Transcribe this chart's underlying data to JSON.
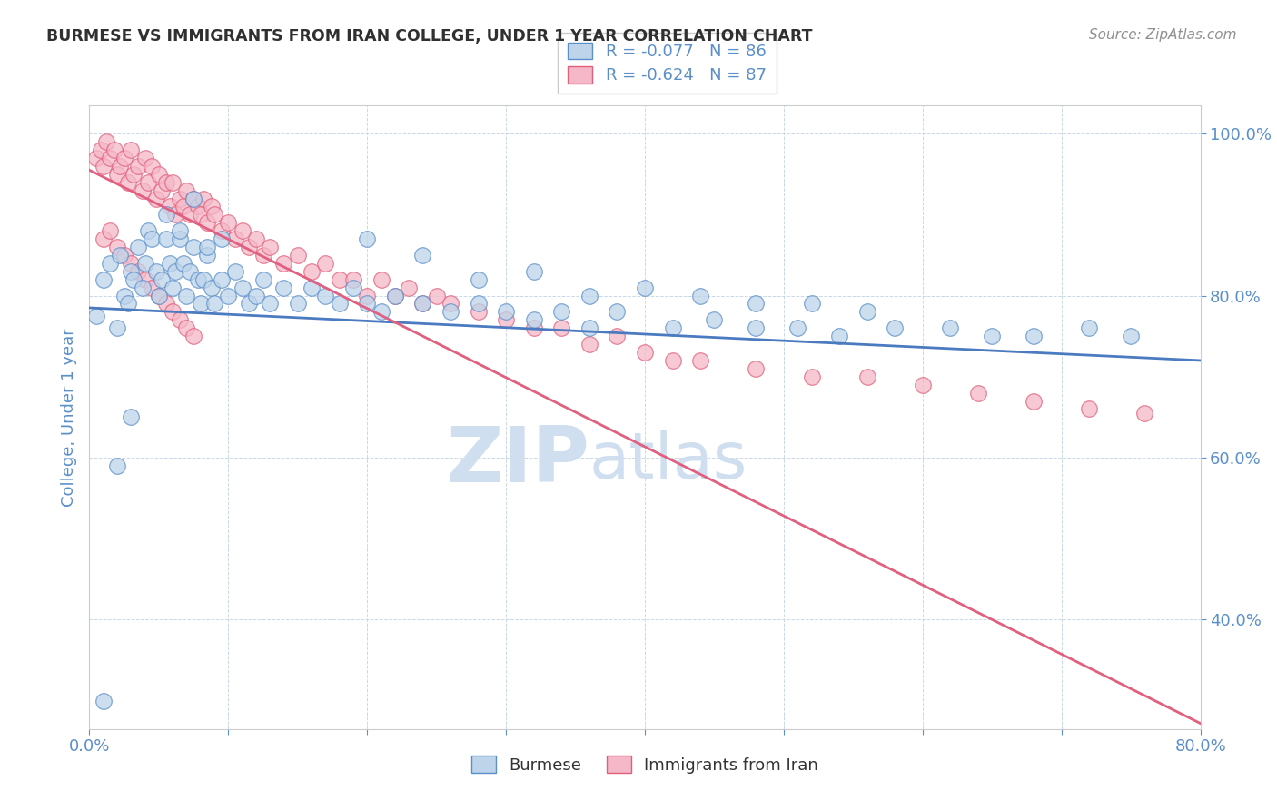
{
  "title": "BURMESE VS IMMIGRANTS FROM IRAN COLLEGE, UNDER 1 YEAR CORRELATION CHART",
  "source": "Source: ZipAtlas.com",
  "ylabel": "College, Under 1 year",
  "watermark_top": "ZIP",
  "watermark_bot": "atlas",
  "legend1_label": "Burmese",
  "legend2_label": "Immigrants from Iran",
  "legend1_r": "R = -0.077",
  "legend1_n": "N = 86",
  "legend2_r": "R = -0.624",
  "legend2_n": "N = 87",
  "blue_face": "#bdd4ea",
  "blue_edge": "#5b8fc9",
  "pink_face": "#f5b8c8",
  "pink_edge": "#e0607a",
  "blue_line": "#4a7abf",
  "pink_line": "#e06080",
  "axis_color": "#5b8fc9",
  "title_color": "#303030",
  "grid_color": "#c8d8e8",
  "source_color": "#909090",
  "watermark_color": "#d0dff0",
  "xlim": [
    0.0,
    0.8
  ],
  "ylim": [
    0.265,
    1.035
  ],
  "xticks": [
    0.0,
    0.1,
    0.2,
    0.3,
    0.4,
    0.5,
    0.6,
    0.7,
    0.8
  ],
  "xticklabels": [
    "0.0%",
    "",
    "",
    "",
    "",
    "",
    "",
    "",
    "80.0%"
  ],
  "yticks": [
    0.4,
    0.6,
    0.8,
    1.0
  ],
  "yticklabels": [
    "40.0%",
    "60.0%",
    "80.0%",
    "100.0%"
  ],
  "blue_x": [
    0.005,
    0.01,
    0.015,
    0.02,
    0.022,
    0.025,
    0.028,
    0.03,
    0.032,
    0.035,
    0.038,
    0.04,
    0.042,
    0.045,
    0.048,
    0.05,
    0.052,
    0.055,
    0.058,
    0.06,
    0.062,
    0.065,
    0.068,
    0.07,
    0.072,
    0.075,
    0.078,
    0.08,
    0.082,
    0.085,
    0.088,
    0.09,
    0.095,
    0.1,
    0.105,
    0.11,
    0.115,
    0.12,
    0.125,
    0.13,
    0.14,
    0.15,
    0.16,
    0.17,
    0.18,
    0.19,
    0.2,
    0.21,
    0.22,
    0.24,
    0.26,
    0.28,
    0.3,
    0.32,
    0.34,
    0.36,
    0.38,
    0.42,
    0.45,
    0.48,
    0.51,
    0.54,
    0.58,
    0.62,
    0.65,
    0.68,
    0.72,
    0.75,
    0.055,
    0.065,
    0.075,
    0.085,
    0.095,
    0.2,
    0.24,
    0.28,
    0.32,
    0.36,
    0.4,
    0.44,
    0.48,
    0.52,
    0.56,
    0.01,
    0.02,
    0.03
  ],
  "blue_y": [
    0.775,
    0.82,
    0.84,
    0.76,
    0.85,
    0.8,
    0.79,
    0.83,
    0.82,
    0.86,
    0.81,
    0.84,
    0.88,
    0.87,
    0.83,
    0.8,
    0.82,
    0.87,
    0.84,
    0.81,
    0.83,
    0.87,
    0.84,
    0.8,
    0.83,
    0.86,
    0.82,
    0.79,
    0.82,
    0.85,
    0.81,
    0.79,
    0.82,
    0.8,
    0.83,
    0.81,
    0.79,
    0.8,
    0.82,
    0.79,
    0.81,
    0.79,
    0.81,
    0.8,
    0.79,
    0.81,
    0.79,
    0.78,
    0.8,
    0.79,
    0.78,
    0.79,
    0.78,
    0.77,
    0.78,
    0.76,
    0.78,
    0.76,
    0.77,
    0.76,
    0.76,
    0.75,
    0.76,
    0.76,
    0.75,
    0.75,
    0.76,
    0.75,
    0.9,
    0.88,
    0.92,
    0.86,
    0.87,
    0.87,
    0.85,
    0.82,
    0.83,
    0.8,
    0.81,
    0.8,
    0.79,
    0.79,
    0.78,
    0.3,
    0.59,
    0.65
  ],
  "pink_x": [
    0.005,
    0.008,
    0.01,
    0.012,
    0.015,
    0.018,
    0.02,
    0.022,
    0.025,
    0.028,
    0.03,
    0.032,
    0.035,
    0.038,
    0.04,
    0.042,
    0.045,
    0.048,
    0.05,
    0.052,
    0.055,
    0.058,
    0.06,
    0.062,
    0.065,
    0.068,
    0.07,
    0.072,
    0.075,
    0.078,
    0.08,
    0.082,
    0.085,
    0.088,
    0.09,
    0.095,
    0.1,
    0.105,
    0.11,
    0.115,
    0.12,
    0.125,
    0.13,
    0.14,
    0.15,
    0.16,
    0.17,
    0.18,
    0.19,
    0.2,
    0.21,
    0.22,
    0.23,
    0.24,
    0.25,
    0.26,
    0.28,
    0.3,
    0.32,
    0.34,
    0.36,
    0.38,
    0.4,
    0.42,
    0.44,
    0.48,
    0.52,
    0.56,
    0.6,
    0.64,
    0.68,
    0.72,
    0.76,
    0.01,
    0.015,
    0.02,
    0.025,
    0.03,
    0.035,
    0.04,
    0.045,
    0.05,
    0.055,
    0.06,
    0.065,
    0.07,
    0.075
  ],
  "pink_y": [
    0.97,
    0.98,
    0.96,
    0.99,
    0.97,
    0.98,
    0.95,
    0.96,
    0.97,
    0.94,
    0.98,
    0.95,
    0.96,
    0.93,
    0.97,
    0.94,
    0.96,
    0.92,
    0.95,
    0.93,
    0.94,
    0.91,
    0.94,
    0.9,
    0.92,
    0.91,
    0.93,
    0.9,
    0.92,
    0.91,
    0.9,
    0.92,
    0.89,
    0.91,
    0.9,
    0.88,
    0.89,
    0.87,
    0.88,
    0.86,
    0.87,
    0.85,
    0.86,
    0.84,
    0.85,
    0.83,
    0.84,
    0.82,
    0.82,
    0.8,
    0.82,
    0.8,
    0.81,
    0.79,
    0.8,
    0.79,
    0.78,
    0.77,
    0.76,
    0.76,
    0.74,
    0.75,
    0.73,
    0.72,
    0.72,
    0.71,
    0.7,
    0.7,
    0.69,
    0.68,
    0.67,
    0.66,
    0.655,
    0.87,
    0.88,
    0.86,
    0.85,
    0.84,
    0.83,
    0.82,
    0.81,
    0.8,
    0.79,
    0.78,
    0.77,
    0.76,
    0.75
  ],
  "blue_trend_x": [
    0.0,
    0.8
  ],
  "blue_trend_y": [
    0.785,
    0.72
  ],
  "pink_trend_x": [
    0.0,
    0.8
  ],
  "pink_trend_y": [
    0.955,
    0.272
  ]
}
